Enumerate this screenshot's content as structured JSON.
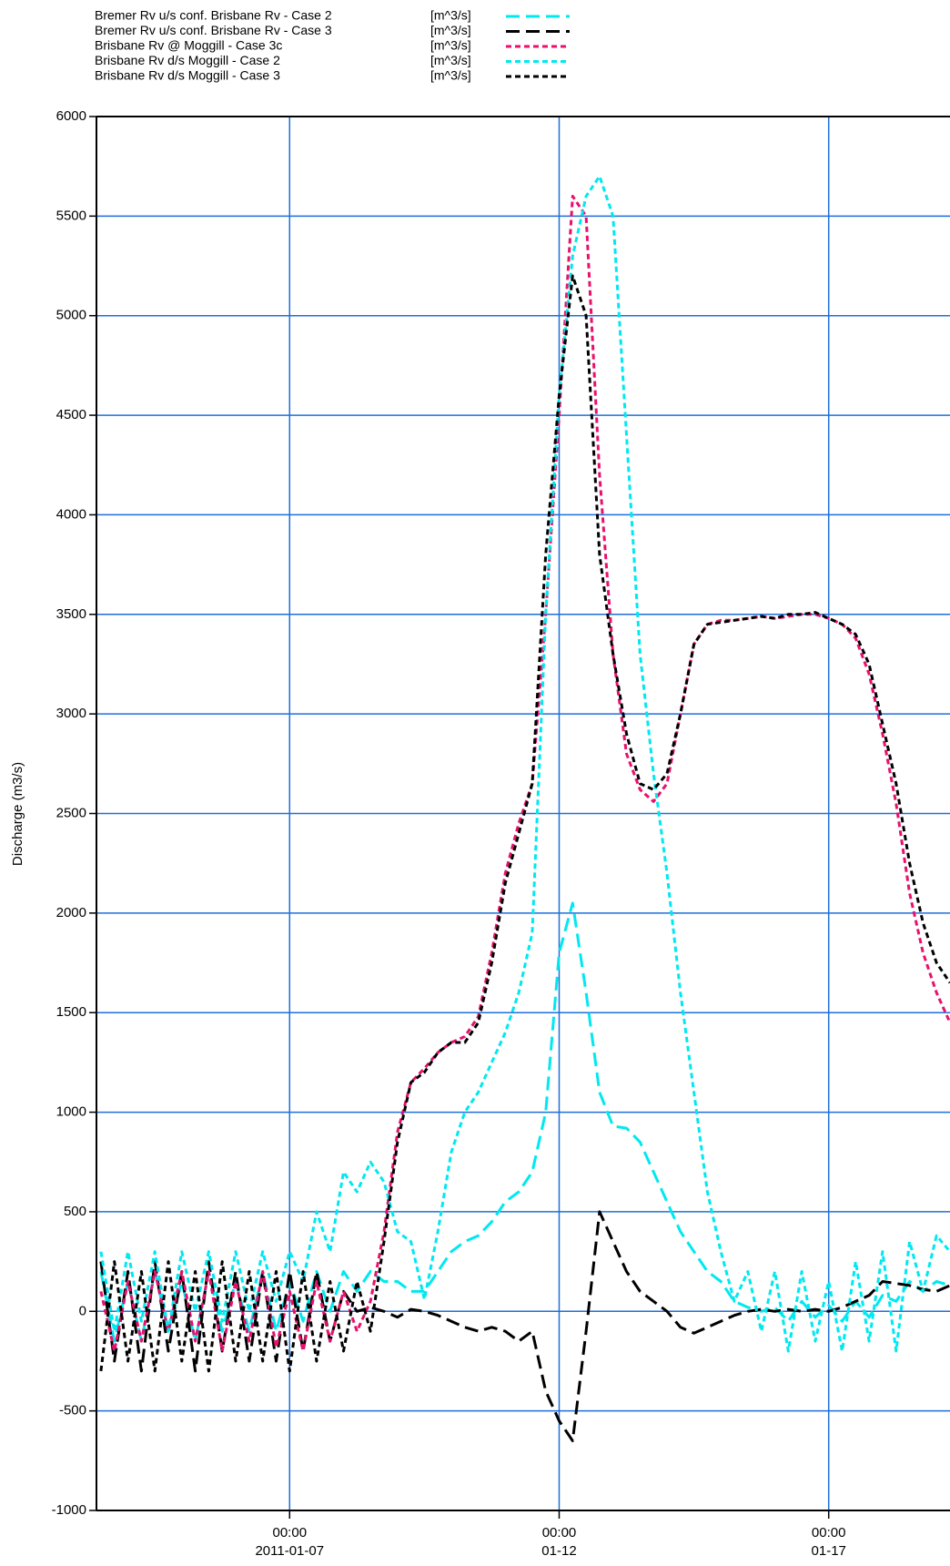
{
  "chart_data": {
    "type": "line",
    "y_label": "Discharge (m3/s)",
    "x": [
      "2011-01-03 12:00",
      "2011-01-03 18:00",
      "2011-01-04 00:00",
      "2011-01-04 06:00",
      "2011-01-04 12:00",
      "2011-01-04 18:00",
      "2011-01-05 00:00",
      "2011-01-05 06:00",
      "2011-01-05 12:00",
      "2011-01-05 18:00",
      "2011-01-06 00:00",
      "2011-01-06 06:00",
      "2011-01-06 12:00",
      "2011-01-06 18:00",
      "2011-01-07 00:00",
      "2011-01-07 06:00",
      "2011-01-07 12:00",
      "2011-01-07 18:00",
      "2011-01-08 00:00",
      "2011-01-08 06:00",
      "2011-01-08 12:00",
      "2011-01-08 18:00",
      "2011-01-09 00:00",
      "2011-01-09 06:00",
      "2011-01-09 12:00",
      "2011-01-09 18:00",
      "2011-01-10 00:00",
      "2011-01-10 06:00",
      "2011-01-10 12:00",
      "2011-01-10 18:00",
      "2011-01-11 00:00",
      "2011-01-11 06:00",
      "2011-01-11 12:00",
      "2011-01-11 18:00",
      "2011-01-12 00:00",
      "2011-01-12 06:00",
      "2011-01-12 12:00",
      "2011-01-12 18:00",
      "2011-01-13 00:00",
      "2011-01-13 06:00",
      "2011-01-13 12:00",
      "2011-01-13 18:00",
      "2011-01-14 00:00",
      "2011-01-14 06:00",
      "2011-01-14 12:00",
      "2011-01-14 18:00",
      "2011-01-15 00:00",
      "2011-01-15 06:00",
      "2011-01-15 12:00",
      "2011-01-15 18:00",
      "2011-01-16 00:00",
      "2011-01-16 06:00",
      "2011-01-16 12:00",
      "2011-01-16 18:00",
      "2011-01-17 00:00",
      "2011-01-17 06:00",
      "2011-01-17 12:00",
      "2011-01-17 18:00",
      "2011-01-18 00:00",
      "2011-01-18 06:00",
      "2011-01-18 12:00",
      "2011-01-18 18:00",
      "2011-01-19 00:00",
      "2011-01-19 06:00"
    ],
    "series": [
      {
        "name": "Bremer Rv u/s conf. Brisbane Rv - Case 2",
        "unit": "[m^3/s]",
        "color": "#00e8f0",
        "dash": "long",
        "values": [
          200,
          -150,
          150,
          -150,
          200,
          -100,
          150,
          -150,
          200,
          -100,
          150,
          -100,
          200,
          -100,
          150,
          -50,
          200,
          0,
          200,
          100,
          200,
          150,
          150,
          100,
          100,
          200,
          300,
          350,
          380,
          450,
          550,
          600,
          700,
          1000,
          1800,
          2050,
          1600,
          1100,
          930,
          920,
          850,
          700,
          550,
          400,
          300,
          200,
          150,
          50,
          20,
          0,
          20,
          -50,
          50,
          -30,
          30,
          -50,
          50,
          -30,
          80,
          50,
          150,
          100,
          150,
          130
        ]
      },
      {
        "name": "Bremer Rv u/s conf. Brisbane Rv - Case 3",
        "unit": "[m^3/s]",
        "color": "#000000",
        "dash": "long",
        "values": [
          250,
          -250,
          200,
          -300,
          250,
          -200,
          200,
          -300,
          250,
          -200,
          200,
          -250,
          200,
          -250,
          200,
          -200,
          200,
          -150,
          100,
          0,
          20,
          0,
          -30,
          10,
          0,
          -20,
          -50,
          -80,
          -100,
          -80,
          -100,
          -150,
          -100,
          -400,
          -550,
          -650,
          -100,
          500,
          350,
          200,
          100,
          50,
          0,
          -80,
          -110,
          -80,
          -50,
          -20,
          0,
          10,
          0,
          10,
          0,
          10,
          0,
          20,
          50,
          80,
          150,
          140,
          130,
          110,
          100,
          130
        ]
      },
      {
        "name": "Brisbane Rv @ Moggill - Case 3c",
        "unit": "[m^3/s]",
        "color": "#e8106c",
        "dash": "short",
        "values": [
          100,
          -200,
          150,
          -150,
          200,
          -100,
          200,
          -150,
          200,
          -200,
          150,
          -150,
          200,
          -180,
          100,
          -200,
          150,
          -150,
          100,
          -100,
          50,
          400,
          900,
          1150,
          1220,
          1300,
          1350,
          1380,
          1480,
          1800,
          2200,
          2450,
          2650,
          3500,
          4500,
          5600,
          5500,
          4200,
          3300,
          2800,
          2620,
          2560,
          2650,
          3000,
          3350,
          3450,
          3470,
          3470,
          3480,
          3490,
          3480,
          3490,
          3500,
          3500,
          3480,
          3450,
          3380,
          3200,
          2900,
          2550,
          2100,
          1800,
          1600,
          1450
        ]
      },
      {
        "name": "Brisbane Rv d/s Moggill - Case 2",
        "unit": "[m^3/s]",
        "color": "#00e8f0",
        "dash": "short",
        "values": [
          300,
          -100,
          300,
          -50,
          300,
          -100,
          300,
          0,
          300,
          -50,
          300,
          0,
          300,
          50,
          300,
          150,
          500,
          300,
          700,
          600,
          750,
          650,
          400,
          350,
          60,
          400,
          800,
          1000,
          1100,
          1250,
          1400,
          1600,
          1900,
          3500,
          4600,
          5300,
          5600,
          5700,
          5500,
          4400,
          3300,
          2700,
          2200,
          1600,
          1100,
          600,
          300,
          50,
          200,
          -100,
          200,
          -200,
          200,
          -150,
          150,
          -200,
          250,
          -150,
          300,
          -200,
          350,
          100,
          380,
          300
        ]
      },
      {
        "name": "Brisbane Rv d/s Moggill - Case 3",
        "unit": "[m^3/s]",
        "color": "#000000",
        "dash": "short",
        "values": [
          -300,
          250,
          -250,
          200,
          -300,
          250,
          -250,
          200,
          -300,
          250,
          -250,
          200,
          -250,
          200,
          -300,
          200,
          -250,
          150,
          -200,
          150,
          -100,
          350,
          850,
          1150,
          1200,
          1300,
          1350,
          1350,
          1450,
          1750,
          2150,
          2400,
          2650,
          3800,
          4600,
          5200,
          5000,
          3800,
          3300,
          2900,
          2650,
          2620,
          2700,
          3000,
          3350,
          3450,
          3460,
          3470,
          3480,
          3490,
          3480,
          3500,
          3500,
          3510,
          3480,
          3450,
          3400,
          3250,
          2950,
          2650,
          2250,
          1950,
          1750,
          1650
        ]
      }
    ],
    "xlim": [
      "2011-01-03 10:00",
      "2011-01-19 06:00"
    ],
    "xticks": [
      {
        "value": "2011-01-07 00:00",
        "label": [
          "00:00",
          "2011-01-07"
        ]
      },
      {
        "value": "2011-01-12 00:00",
        "label": [
          "00:00",
          "01-12"
        ]
      },
      {
        "value": "2011-01-17 00:00",
        "label": [
          "00:00",
          "01-17"
        ]
      }
    ],
    "ylim": [
      -1000,
      6000
    ],
    "yticks": [
      -1000,
      -500,
      0,
      500,
      1000,
      1500,
      2000,
      2500,
      3000,
      3500,
      4000,
      4500,
      5000,
      5500,
      6000
    ],
    "grid": true,
    "grid_color": "#1e6fd9",
    "legend": "top-left"
  }
}
